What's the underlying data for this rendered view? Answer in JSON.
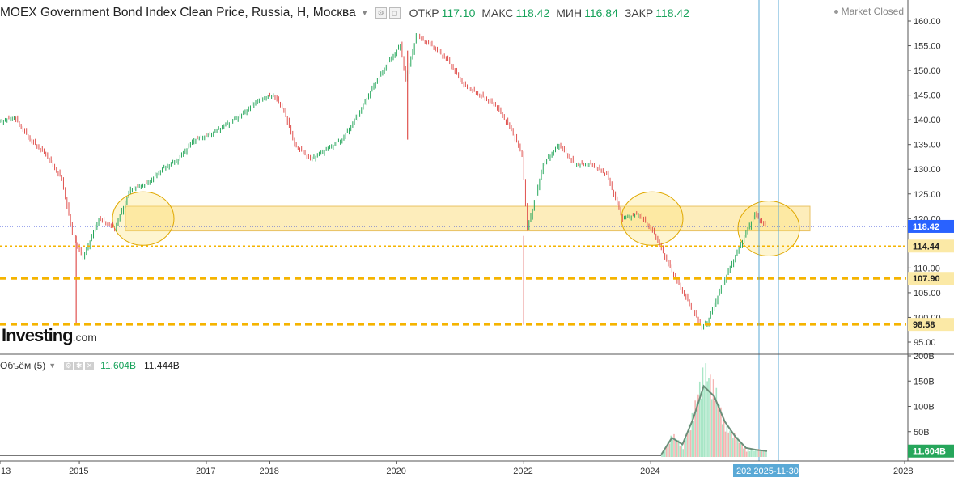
{
  "header": {
    "title": "MOEX Government Bond Index Clean Price, Russia, Н, Москва",
    "open_label": "ОТКР",
    "open": "117.10",
    "high_label": "МАКС",
    "high": "118.42",
    "low_label": "МИН",
    "low": "116.84",
    "close_label": "ЗАКР",
    "close": "118.42",
    "market_status": "Market Closed"
  },
  "logo": {
    "main": "Investing",
    "suffix": ".com"
  },
  "volume_header": {
    "name": "Объём (5)",
    "value1": "11.604B",
    "value2": "11.444B"
  },
  "colors": {
    "up": "#26a65b",
    "down": "#e0524f",
    "support_lines": "#f5b400",
    "zone_fill": "#fdebb0",
    "vertical_lines": "#5aa9d6",
    "price_tag": "#2962ff"
  },
  "price_axis": {
    "ticks": [
      "160.00",
      "155.00",
      "150.00",
      "145.00",
      "140.00",
      "135.00",
      "130.00",
      "125.00",
      "120.00",
      "115.00",
      "110.00",
      "105.00",
      "100.00",
      "95.00"
    ],
    "current_tag": "118.42",
    "levels": [
      "114.44",
      "107.90",
      "98.58"
    ]
  },
  "volume_axis": {
    "ticks": [
      "200B",
      "150B",
      "100B",
      "50B"
    ],
    "current_tag": "11.604B"
  },
  "time_axis": {
    "labels": [
      "13",
      "2015",
      "2017",
      "2018",
      "2020",
      "2022",
      "2024",
      "2028"
    ],
    "cursor_label": "202 2025-11-30"
  },
  "chart_data": {
    "type": "line",
    "title": "MOEX Government Bond Index Clean Price, Russia, Н, Москва",
    "x": [
      "2013-10",
      "2014-01",
      "2014-04",
      "2014-07",
      "2014-10",
      "2014-12",
      "2015-02",
      "2015-05",
      "2015-08",
      "2015-11",
      "2016-02",
      "2016-05",
      "2016-08",
      "2016-11",
      "2017-02",
      "2017-05",
      "2017-08",
      "2017-11",
      "2018-02",
      "2018-04",
      "2018-06",
      "2018-09",
      "2018-12",
      "2019-03",
      "2019-06",
      "2019-09",
      "2019-12",
      "2020-02",
      "2020-03",
      "2020-05",
      "2020-08",
      "2020-11",
      "2021-02",
      "2021-05",
      "2021-08",
      "2021-11",
      "2022-01",
      "2022-02",
      "2022-03",
      "2022-05",
      "2022-08",
      "2022-11",
      "2023-02",
      "2023-05",
      "2023-08",
      "2023-11",
      "2024-02",
      "2024-05",
      "2024-08",
      "2024-11",
      "2024-12",
      "2025-03",
      "2025-06",
      "2025-09",
      "2025-11"
    ],
    "series": [
      {
        "values": [
          139.5,
          140.5,
          136,
          133,
          128,
          117,
          112,
          120,
          118,
          126,
          127,
          130,
          132,
          136,
          137,
          139,
          141,
          144,
          145,
          142,
          135,
          132,
          134,
          136,
          141,
          147,
          152,
          155,
          148,
          157,
          155,
          152,
          147,
          145,
          143,
          138,
          133,
          118,
          122,
          131,
          135,
          131,
          131,
          129,
          120,
          121,
          117,
          110,
          104,
          98,
          99,
          107,
          114,
          121,
          118.42
        ]
      }
    ],
    "ylim": [
      93,
      163
    ],
    "yticks": [
      95,
      100,
      105,
      110,
      115,
      120,
      125,
      130,
      135,
      140,
      145,
      150,
      155,
      160
    ],
    "horizontal_levels": [
      114.44,
      107.9,
      98.58
    ],
    "price_zone": [
      117.5,
      122.5
    ],
    "volume": {
      "x": [
        "2024-03",
        "2024-05",
        "2024-07",
        "2024-09",
        "2024-11",
        "2025-01",
        "2025-03",
        "2025-05",
        "2025-07",
        "2025-09",
        "2025-11"
      ],
      "values": [
        5,
        45,
        20,
        90,
        175,
        135,
        60,
        40,
        12,
        15,
        11.604
      ],
      "ma_values": [
        5,
        38,
        25,
        75,
        140,
        120,
        70,
        40,
        18,
        14,
        11.444
      ],
      "ylim": [
        0,
        210
      ]
    }
  }
}
